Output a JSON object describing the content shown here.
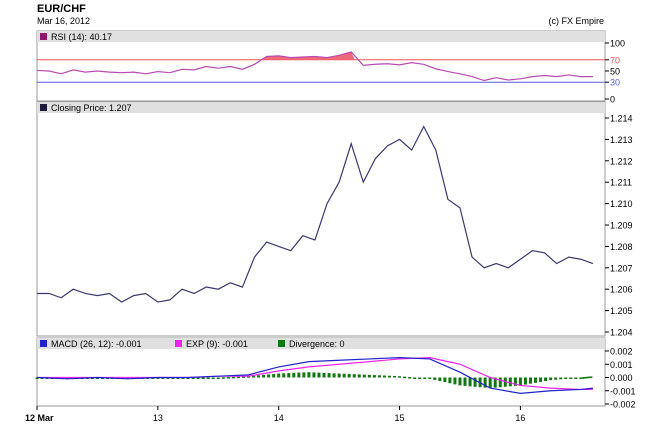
{
  "header": {
    "symbol": "EUR/CHF",
    "date": "Mar 16, 2012",
    "credit": "(c) FX Empire"
  },
  "panels": {
    "rsi": {
      "legend": "RSI (14): 40.17",
      "ticks": [
        "100",
        "70",
        "50",
        "30",
        "0"
      ],
      "levels": {
        "overbought": 70,
        "oversold": 30
      }
    },
    "price": {
      "legend": "Closing Price: 1.207",
      "ticks": [
        "1.214",
        "1.213",
        "1.212",
        "1.211",
        "1.210",
        "1.209",
        "1.208",
        "1.207",
        "1.206",
        "1.205",
        "1.204"
      ]
    },
    "macd": {
      "legend_macd": "MACD (26, 12): -0.001",
      "legend_exp": "EXP (9): -0.001",
      "legend_div": "Divergence: 0",
      "ticks": [
        "0.002",
        "0.001",
        "0.000",
        "-0.001",
        "-0.002"
      ]
    }
  },
  "xaxis": {
    "labels": [
      "12 Mar",
      "13",
      "14",
      "15",
      "16"
    ]
  },
  "colors": {
    "rsi_line": "#b94ab0",
    "rsi_fill": "#ee6a7b",
    "rsi_70": "#ee5555",
    "rsi_30": "#5a5ad8",
    "price_line": "#3a3a6e",
    "macd": "#2222cc",
    "exp": "#ee22ee",
    "divergence": "#117711",
    "legend_rsi": "#8b1a6e",
    "legend_price": "#1a1a3a",
    "legend_macd": "#2222cc",
    "legend_exp": "#ee22ee",
    "legend_div": "#117711",
    "panel_header": "#e0e0e0",
    "border": "#999999"
  },
  "chart_data": [
    {
      "type": "line",
      "title": "RSI (14): 40.17",
      "ylim": [
        0,
        100
      ],
      "x": [
        12.0,
        12.1,
        12.2,
        12.3,
        12.4,
        12.5,
        12.6,
        12.7,
        12.8,
        12.9,
        13.0,
        13.1,
        13.2,
        13.3,
        13.4,
        13.5,
        13.6,
        13.7,
        13.8,
        13.9,
        14.0,
        14.1,
        14.2,
        14.3,
        14.4,
        14.5,
        14.6,
        14.7,
        14.8,
        14.9,
        15.0,
        15.1,
        15.2,
        15.3,
        15.4,
        15.5,
        15.6,
        15.7,
        15.8,
        15.9,
        16.0,
        16.1,
        16.2,
        16.3,
        16.4,
        16.5,
        16.6
      ],
      "values": [
        51,
        50,
        45,
        52,
        48,
        50,
        48,
        47,
        48,
        45,
        49,
        47,
        53,
        52,
        58,
        55,
        58,
        53,
        62,
        76,
        77,
        74,
        75,
        76,
        74,
        78,
        84,
        60,
        62,
        63,
        61,
        65,
        62,
        54,
        49,
        45,
        40,
        33,
        38,
        34,
        36,
        40,
        42,
        40,
        43,
        40,
        40
      ],
      "levels": [
        70,
        30
      ]
    },
    {
      "type": "line",
      "title": "Closing Price: 1.207",
      "ylim": [
        1.204,
        1.214
      ],
      "x": [
        12.0,
        12.1,
        12.2,
        12.3,
        12.4,
        12.5,
        12.6,
        12.7,
        12.8,
        12.9,
        13.0,
        13.1,
        13.2,
        13.3,
        13.4,
        13.5,
        13.6,
        13.7,
        13.8,
        13.9,
        14.0,
        14.1,
        14.2,
        14.3,
        14.4,
        14.5,
        14.6,
        14.7,
        14.8,
        14.9,
        15.0,
        15.1,
        15.2,
        15.3,
        15.4,
        15.5,
        15.6,
        15.7,
        15.8,
        15.9,
        16.0,
        16.1,
        16.2,
        16.3,
        16.4,
        16.5,
        16.6
      ],
      "values": [
        1.2058,
        1.2058,
        1.2056,
        1.206,
        1.2058,
        1.2057,
        1.2058,
        1.2054,
        1.2057,
        1.2058,
        1.2054,
        1.2055,
        1.206,
        1.2058,
        1.2061,
        1.206,
        1.2063,
        1.2061,
        1.2075,
        1.2082,
        1.208,
        1.2078,
        1.2085,
        1.2083,
        1.21,
        1.211,
        1.2128,
        1.211,
        1.2121,
        1.2127,
        1.213,
        1.2125,
        1.2136,
        1.2125,
        1.2102,
        1.2098,
        1.2075,
        1.207,
        1.2072,
        1.207,
        1.2074,
        1.2078,
        1.2077,
        1.2072,
        1.2075,
        1.2074,
        1.2072
      ]
    },
    {
      "type": "line",
      "title": "MACD (26, 12): -0.001",
      "ylim": [
        -0.002,
        0.002
      ],
      "x": [
        12.0,
        12.25,
        12.5,
        12.75,
        13.0,
        13.25,
        13.5,
        13.75,
        14.0,
        14.25,
        14.5,
        14.75,
        15.0,
        15.25,
        15.5,
        15.75,
        16.0,
        16.25,
        16.5,
        16.6
      ],
      "series": [
        {
          "name": "MACD (26, 12): -0.001",
          "values": [
            0.0,
            -0.0001,
            0.0,
            -0.0001,
            0.0,
            0.0,
            0.0001,
            0.0002,
            0.0008,
            0.0012,
            0.0013,
            0.0014,
            0.0015,
            0.0014,
            0.0004,
            -0.0008,
            -0.0012,
            -0.001,
            -0.0009,
            -0.0008
          ]
        },
        {
          "name": "EXP (9): -0.001",
          "values": [
            0.0,
            0.0,
            0.0,
            0.0,
            0.0,
            0.0,
            0.0001,
            0.0001,
            0.0005,
            0.0008,
            0.001,
            0.0012,
            0.0014,
            0.0015,
            0.001,
            0.0,
            -0.0006,
            -0.0008,
            -0.0009,
            -0.0009
          ]
        },
        {
          "name": "Divergence: 0",
          "type": "bar",
          "values": [
            0.0,
            0.0,
            0.0,
            0.0,
            0.0,
            0.0,
            0.0,
            0.0001,
            0.0003,
            0.0004,
            0.0003,
            0.0002,
            0.0001,
            -0.0001,
            -0.0006,
            -0.0008,
            -0.0006,
            -0.0002,
            0.0,
            0.0001
          ]
        }
      ]
    }
  ]
}
